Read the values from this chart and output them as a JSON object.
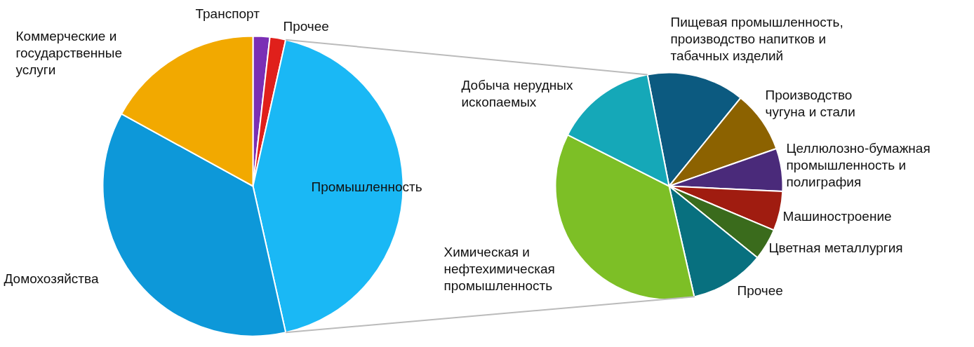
{
  "chart_data": [
    {
      "type": "pie",
      "categories": [
        "Транспорт",
        "Прочее",
        "Промышленность",
        "Домохозяйства",
        "Коммерческие и государственные услуги"
      ],
      "values": [
        1.8,
        1.7,
        43,
        36.5,
        17
      ],
      "colors": [
        "#7b2fb5",
        "#e0201b",
        "#1ab8f5",
        "#0d98d9",
        "#f2a900"
      ]
    },
    {
      "type": "pie",
      "categories": [
        "Пищевая промышленность, производство напитков и табачных изделий",
        "Производство чугуна и стали",
        "Целлюлозно-бумажная промышленность и полиграфия",
        "Машиностроение",
        "Цветная металлургия",
        "Прочее",
        "Химическая и нефтехимическая промышленность",
        "Добыча нерудных ископаемых"
      ],
      "values": [
        13.9,
        8.8,
        6.1,
        5.6,
        4.5,
        10.6,
        36.0,
        14.5
      ],
      "colors": [
        "#0c5a80",
        "#8c6200",
        "#4a2a7a",
        "#a01c10",
        "#3a6b1c",
        "#08707f",
        "#7dbf26",
        "#15a8b8"
      ]
    }
  ]
}
